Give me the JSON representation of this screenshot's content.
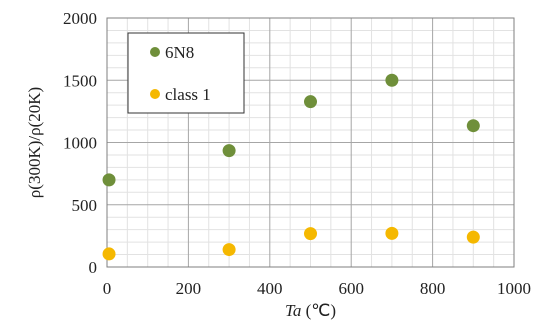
{
  "chart_data": {
    "type": "scatter",
    "xlabel_var": "Ta",
    "xlabel_unit": " (℃)",
    "ylabel": "ρ(300K)/ρ(20K)",
    "xlim": [
      0,
      1000
    ],
    "ylim": [
      0,
      2000
    ],
    "x_ticks": [
      "0",
      "200",
      "400",
      "600",
      "800",
      "1000"
    ],
    "y_ticks": [
      "0",
      "500",
      "1000",
      "1500",
      "2000"
    ],
    "grid": true,
    "legend_position": "top-left",
    "series": [
      {
        "name": "6N8",
        "color": "#6f8f3a",
        "points": [
          [
            5,
            700
          ],
          [
            300,
            935
          ],
          [
            500,
            1328
          ],
          [
            700,
            1500
          ],
          [
            900,
            1135
          ]
        ]
      },
      {
        "name": "class 1",
        "color": "#f5b800",
        "points": [
          [
            5,
            105
          ],
          [
            300,
            140
          ],
          [
            500,
            268
          ],
          [
            700,
            270
          ],
          [
            900,
            240
          ]
        ]
      }
    ]
  }
}
